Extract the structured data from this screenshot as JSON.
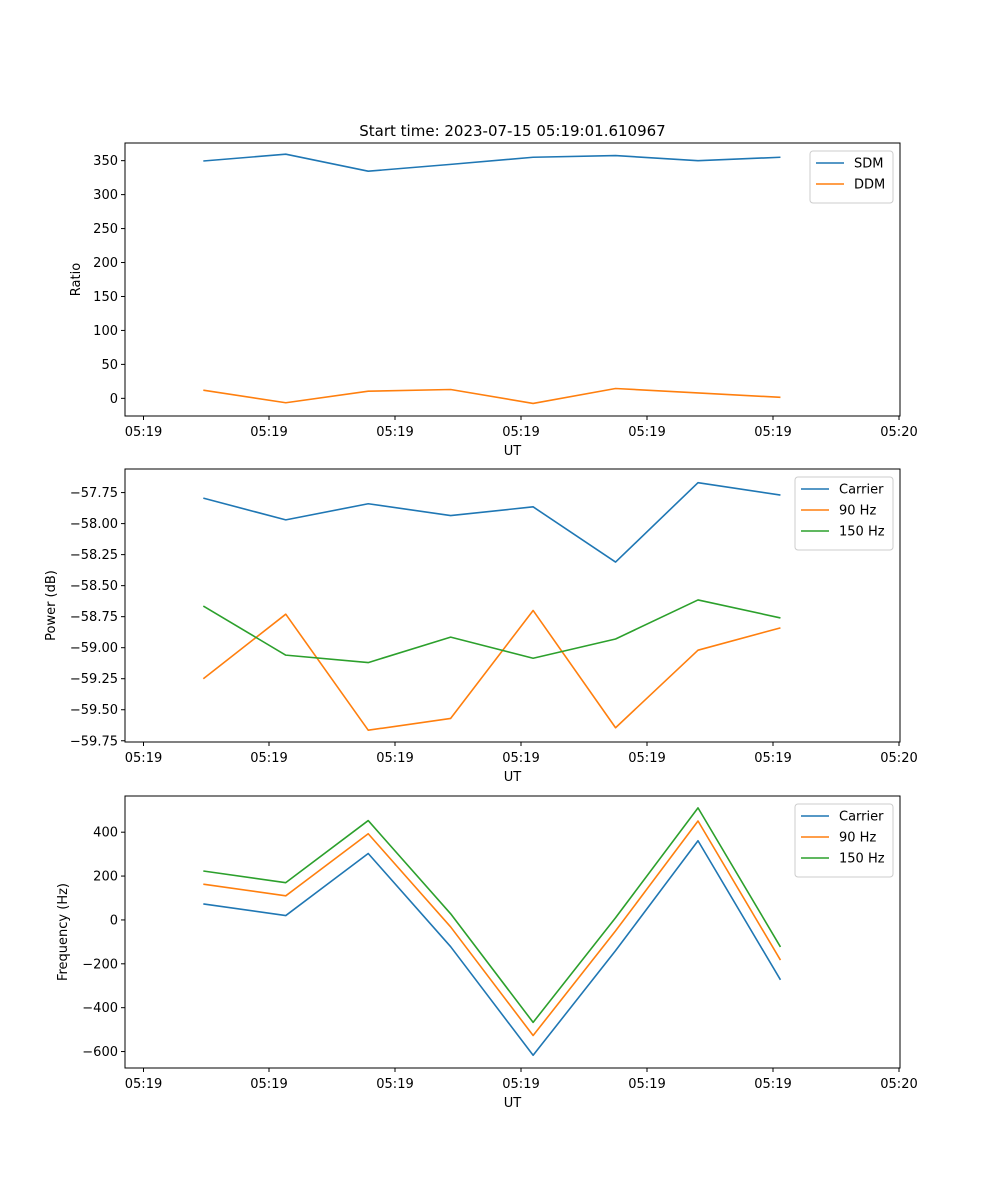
{
  "title": "Start time: 2023-07-15 05:19:01.610967",
  "chart_data": [
    {
      "type": "line",
      "title": "Start time: 2023-07-15 05:19:01.610967",
      "xlabel": "UT",
      "ylabel": "Ratio",
      "x_tick_labels": [
        "05:19",
        "05:19",
        "05:19",
        "05:19",
        "05:19",
        "05:19",
        "05:20"
      ],
      "x_index": [
        0,
        1,
        2,
        3,
        4,
        5,
        6,
        7
      ],
      "xlim": [
        -0.95,
        8.45
      ],
      "ylim": [
        -26,
        376
      ],
      "yticks": [
        0,
        50,
        100,
        150,
        200,
        250,
        300,
        350
      ],
      "legend_position": "top-right",
      "series": [
        {
          "name": "SDM",
          "color": "#1f77b4",
          "values": [
            349.5,
            359.5,
            334.5,
            344.5,
            355.0,
            357.5,
            350.0,
            355.0
          ]
        },
        {
          "name": "DDM",
          "color": "#ff7f0e",
          "values": [
            12.0,
            -6.5,
            10.5,
            13.0,
            -7.5,
            14.5,
            8.0,
            1.5
          ]
        }
      ]
    },
    {
      "type": "line",
      "xlabel": "UT",
      "ylabel": "Power (dB)",
      "x_tick_labels": [
        "05:19",
        "05:19",
        "05:19",
        "05:19",
        "05:19",
        "05:19",
        "05:20"
      ],
      "x_index": [
        0,
        1,
        2,
        3,
        4,
        5,
        6,
        7
      ],
      "xlim": [
        -0.95,
        8.45
      ],
      "ylim": [
        -59.76,
        -57.56
      ],
      "yticks": [
        -59.75,
        -59.5,
        -59.25,
        -59.0,
        -58.75,
        -58.5,
        -58.25,
        -58.0,
        -57.75
      ],
      "legend_position": "top-right",
      "series": [
        {
          "name": "Carrier",
          "color": "#1f77b4",
          "values": [
            -57.795,
            -57.97,
            -57.84,
            -57.935,
            -57.865,
            -58.31,
            -57.67,
            -57.77
          ]
        },
        {
          "name": "90 Hz",
          "color": "#ff7f0e",
          "values": [
            -59.25,
            -58.73,
            -59.665,
            -59.57,
            -58.7,
            -59.645,
            -59.02,
            -58.84
          ]
        },
        {
          "name": "150 Hz",
          "color": "#2ca02c",
          "values": [
            -58.665,
            -59.06,
            -59.12,
            -58.915,
            -59.085,
            -58.93,
            -58.615,
            -58.76
          ]
        }
      ]
    },
    {
      "type": "line",
      "xlabel": "UT",
      "ylabel": "Frequency (Hz)",
      "x_tick_labels": [
        "05:19",
        "05:19",
        "05:19",
        "05:19",
        "05:19",
        "05:19",
        "05:20"
      ],
      "x_index": [
        0,
        1,
        2,
        3,
        4,
        5,
        6,
        7
      ],
      "xlim": [
        -0.95,
        8.45
      ],
      "ylim": [
        -675,
        565
      ],
      "yticks": [
        -600,
        -400,
        -200,
        0,
        200,
        400
      ],
      "legend_position": "top-right",
      "series": [
        {
          "name": "Carrier",
          "color": "#1f77b4",
          "values": [
            73,
            20,
            303,
            -122,
            -617,
            -140,
            361,
            -273
          ]
        },
        {
          "name": "90 Hz",
          "color": "#ff7f0e",
          "values": [
            163,
            110,
            393,
            -32,
            -527,
            -50,
            451,
            -183
          ]
        },
        {
          "name": "150 Hz",
          "color": "#2ca02c",
          "values": [
            223,
            170,
            453,
            28,
            -467,
            10,
            511,
            -123
          ]
        }
      ]
    }
  ]
}
